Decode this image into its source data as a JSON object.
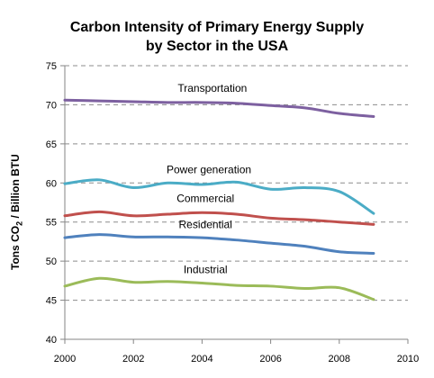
{
  "chart_data": {
    "type": "line",
    "title_line1": "Carbon Intensity of Primary Energy Supply",
    "title_line2": "by Sector in the USA",
    "ylabel_prefix": "Tons CO",
    "ylabel_subscript": "2",
    "ylabel_suffix": " / Billion BTU",
    "xlabel": "",
    "xlim": [
      2000,
      2010
    ],
    "ylim": [
      40,
      75
    ],
    "x_ticks": [
      "2000",
      "2002",
      "2004",
      "2006",
      "2008",
      "2010"
    ],
    "y_ticks": [
      "40",
      "45",
      "50",
      "55",
      "60",
      "65",
      "70",
      "75"
    ],
    "grid": "horizontal dashed",
    "x": [
      2000,
      2001,
      2002,
      2003,
      2004,
      2005,
      2006,
      2007,
      2008,
      2009
    ],
    "series": [
      {
        "name": "Transportation",
        "color": "#7d60a0",
        "values": [
          70.6,
          70.5,
          70.4,
          70.3,
          70.3,
          70.2,
          69.9,
          69.6,
          68.9,
          68.5
        ]
      },
      {
        "name": "Power generation",
        "color": "#4bacc6",
        "values": [
          59.9,
          60.4,
          59.4,
          60.0,
          59.8,
          60.1,
          59.2,
          59.4,
          58.9,
          56.1
        ]
      },
      {
        "name": "Commercial",
        "color": "#c0504d",
        "values": [
          55.8,
          56.3,
          55.8,
          56.0,
          56.2,
          56.0,
          55.5,
          55.3,
          55.0,
          54.7
        ]
      },
      {
        "name": "Residential",
        "color": "#4f81bd",
        "values": [
          53.0,
          53.4,
          53.1,
          53.1,
          53.0,
          52.7,
          52.3,
          51.9,
          51.2,
          51.0
        ]
      },
      {
        "name": "Industrial",
        "color": "#9bbb59",
        "values": [
          46.8,
          47.8,
          47.3,
          47.4,
          47.2,
          46.9,
          46.8,
          46.5,
          46.6,
          45.1
        ]
      }
    ]
  }
}
